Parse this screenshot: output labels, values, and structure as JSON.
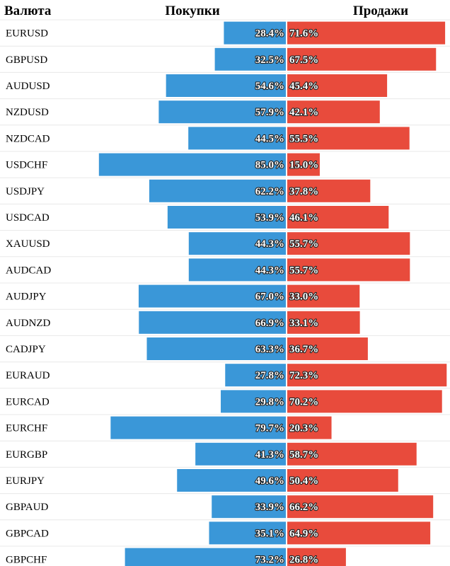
{
  "chart_data": {
    "type": "bar",
    "orientation": "horizontal-diverging",
    "headers": {
      "pair": "Валюта",
      "buy": "Покупки",
      "sell": "Продажи"
    },
    "colors": {
      "buy": "#3a97d8",
      "sell": "#e84b3c",
      "row_divider": "#e8e8e8",
      "center_line": "#ffffff"
    },
    "xlim": [
      0,
      100
    ],
    "series": [
      {
        "name": "Покупки",
        "values": [
          28.4,
          32.5,
          54.6,
          57.9,
          44.5,
          85.0,
          62.2,
          53.9,
          44.3,
          44.3,
          67.0,
          66.9,
          63.3,
          27.8,
          29.8,
          79.7,
          41.3,
          49.6,
          33.9,
          35.1,
          73.2
        ],
        "labels": [
          "28.4%",
          "32.5%",
          "54.6%",
          "57.9%",
          "44.5%",
          "85.0%",
          "62.2%",
          "53.9%",
          "44.3%",
          "44.3%",
          "67.0%",
          "66.9%",
          "63.3%",
          "27.8%",
          "29.8%",
          "79.7%",
          "41.3%",
          "49.6%",
          "33.9%",
          "35.1%",
          "73.2%"
        ]
      },
      {
        "name": "Продажи",
        "values": [
          71.6,
          67.5,
          45.4,
          42.1,
          55.5,
          15.0,
          37.8,
          46.1,
          55.7,
          55.7,
          33.0,
          33.1,
          36.7,
          72.3,
          70.2,
          20.3,
          58.7,
          50.4,
          66.2,
          64.9,
          26.8
        ],
        "labels": [
          "71.6%",
          "67.5%",
          "45.4%",
          "42.1%",
          "55.5%",
          "15.0%",
          "37.8%",
          "46.1%",
          "55.7%",
          "55.7%",
          "33.0%",
          "33.1%",
          "36.7%",
          "72.3%",
          "70.2%",
          "20.3%",
          "58.7%",
          "50.4%",
          "66.2%",
          "64.9%",
          "26.8%"
        ]
      }
    ],
    "categories": [
      "EURUSD",
      "GBPUSD",
      "AUDUSD",
      "NZDUSD",
      "NZDCAD",
      "USDCHF",
      "USDJPY",
      "USDCAD",
      "XAUUSD",
      "AUDCAD",
      "AUDJPY",
      "AUDNZD",
      "CADJPY",
      "EURAUD",
      "EURCAD",
      "EURCHF",
      "EURGBP",
      "EURJPY",
      "GBPAUD",
      "GBPCAD",
      "GBPCHF"
    ]
  }
}
